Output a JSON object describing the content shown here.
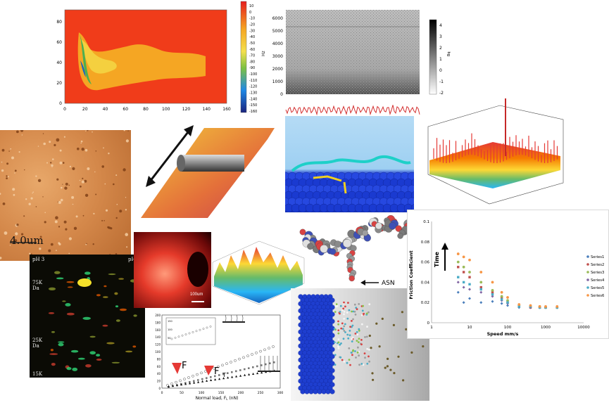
{
  "heatmap": {
    "y_ticks": [
      "80",
      "60",
      "40",
      "20",
      "0"
    ],
    "x_ticks": [
      "0",
      "20",
      "40",
      "60",
      "80",
      "100",
      "120",
      "140",
      "160"
    ],
    "colorbar_ticks": [
      "10",
      "0",
      "-10",
      "-20",
      "-30",
      "-40",
      "-50",
      "-60",
      "-70",
      "-80",
      "-90",
      "-100",
      "-110",
      "-120",
      "-130",
      "-140",
      "-150",
      "-160"
    ]
  },
  "spectrogram": {
    "y_ticks": [
      "6000",
      "5000",
      "4000",
      "3000",
      "2000",
      "1000",
      "0"
    ],
    "y_label": "Hz",
    "colorbar_ticks": [
      "4",
      "3",
      "2",
      "1",
      "0",
      "-1",
      "-2"
    ],
    "colorbar_label": "Bq"
  },
  "afm": {
    "scale_label": "4.0um"
  },
  "gel": {
    "ph_left": "pH 3",
    "ph_right": "pH 10",
    "mw_markers": [
      "75K Da",
      "25K Da",
      "15K"
    ]
  },
  "fluorescence": {
    "scale_label": "100um"
  },
  "molecule": {
    "label": "ASN"
  },
  "load_plot": {
    "x_ticks": [
      "0",
      "50",
      "100",
      "150",
      "200",
      "250",
      "300"
    ],
    "y_ticks": [
      "200",
      "180",
      "160",
      "140",
      "120",
      "100",
      "80",
      "60",
      "40",
      "20",
      "0"
    ],
    "x_label": "Normal load, F",
    "x_label_sub": "L",
    "x_label_unit": " (nN)",
    "inset_ticks": [
      "150",
      "100",
      "50"
    ],
    "marker_labels": [
      "F",
      "F"
    ],
    "marker_sub": "T"
  },
  "friction_chart": {
    "y_label": "Friction Coefficient",
    "x_label": "Speed mm/s",
    "arrow_label": "Time",
    "legend": [
      "Series1",
      "Series2",
      "Series3",
      "Series4",
      "Series5",
      "Series6"
    ],
    "colors": [
      "#4a7ebb",
      "#c0504d",
      "#9bbb59",
      "#8064a2",
      "#4bacc6",
      "#f79646"
    ]
  },
  "chart_data": {
    "type": "scatter",
    "xlabel": "Speed mm/s",
    "ylabel": "Friction Coefficient",
    "xscale": "log",
    "xlim": [
      1,
      10000
    ],
    "ylim": [
      0,
      0.1
    ],
    "x_ticks": [
      "1",
      "10",
      "100",
      "1000",
      "10000"
    ],
    "y_ticks": [
      "0.1",
      "0.08",
      "0.06",
      "0.04",
      "0.02",
      "0"
    ],
    "series": [
      {
        "name": "Series1",
        "x": [
          5,
          7,
          10,
          20,
          40,
          70,
          100,
          200,
          400,
          700,
          1000,
          2000
        ],
        "y": [
          0.03,
          0.02,
          0.024,
          0.02,
          0.021,
          0.019,
          0.017,
          0.015,
          0.015,
          0.015,
          0.015,
          0.015
        ]
      },
      {
        "name": "Series2",
        "x": [
          5,
          7,
          10,
          20,
          40,
          70,
          100,
          200,
          400,
          700,
          1000,
          2000
        ],
        "y": [
          0.055,
          0.05,
          0.045,
          0.035,
          0.03,
          0.025,
          0.02,
          0.016,
          0.015,
          0.015,
          0.015,
          0.015
        ]
      },
      {
        "name": "Series3",
        "x": [
          5,
          7,
          10,
          20,
          40,
          70,
          100,
          200,
          400,
          700,
          1000,
          2000
        ],
        "y": [
          0.06,
          0.055,
          0.05,
          0.04,
          0.032,
          0.026,
          0.022,
          0.017,
          0.016,
          0.016,
          0.015,
          0.015
        ]
      },
      {
        "name": "Series4",
        "x": [
          5,
          7,
          10,
          20,
          40,
          70,
          100,
          200,
          400,
          700,
          1000,
          2000
        ],
        "y": [
          0.04,
          0.035,
          0.033,
          0.03,
          0.026,
          0.022,
          0.019,
          0.016,
          0.015,
          0.015,
          0.015,
          0.015
        ]
      },
      {
        "name": "Series5",
        "x": [
          5,
          7,
          10,
          20,
          40,
          70,
          100,
          200,
          400,
          700,
          1000,
          2000
        ],
        "y": [
          0.045,
          0.04,
          0.038,
          0.033,
          0.028,
          0.023,
          0.02,
          0.016,
          0.016,
          0.015,
          0.015,
          0.015
        ]
      },
      {
        "name": "Series6",
        "x": [
          5,
          7,
          10,
          20,
          40,
          70,
          100,
          200,
          400,
          700,
          1000,
          2000
        ],
        "y": [
          0.068,
          0.065,
          0.062,
          0.05,
          0.04,
          0.03,
          0.025,
          0.018,
          0.017,
          0.016,
          0.016,
          0.016
        ]
      }
    ]
  }
}
